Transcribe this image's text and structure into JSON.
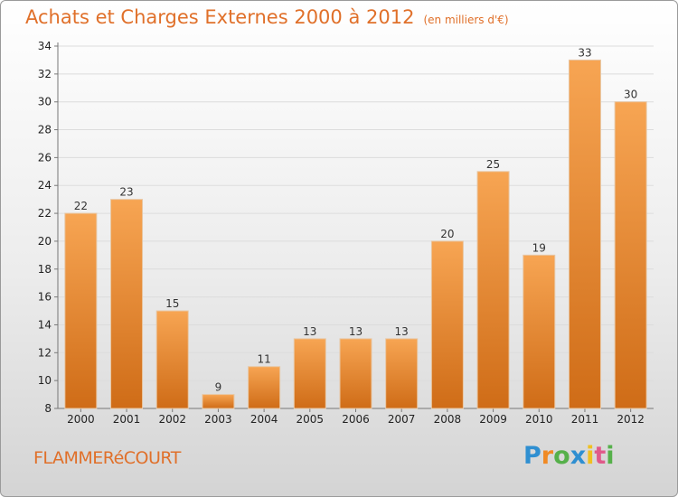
{
  "chart_data": {
    "type": "bar",
    "title": "Achats et Charges Externes 2000 à 2012",
    "subtitle": "(en milliers d'€)",
    "categories": [
      "2000",
      "2001",
      "2002",
      "2003",
      "2004",
      "2005",
      "2006",
      "2007",
      "2008",
      "2009",
      "2010",
      "2011",
      "2012"
    ],
    "values": [
      22,
      23,
      15,
      9,
      11,
      13,
      13,
      13,
      20,
      25,
      19,
      33,
      30
    ],
    "ylim": [
      8,
      34
    ],
    "yticks": [
      8,
      10,
      12,
      14,
      16,
      18,
      20,
      22,
      24,
      26,
      28,
      30,
      32,
      34
    ],
    "grid": true,
    "xlabel": "",
    "ylabel": "",
    "bar_color_top": "#f7a553",
    "bar_color_bottom": "#cf6c17",
    "title_color": "#e0702a"
  },
  "footer": {
    "commune": "FLAMMERéCOURT"
  },
  "logo": {
    "letters": [
      "P",
      "r",
      "o",
      "x",
      "i",
      "t",
      "i"
    ],
    "colors": [
      "#2f8fd1",
      "#f08a24",
      "#56b04a",
      "#2f8fd1",
      "#f0c020",
      "#e05a8a",
      "#56b04a"
    ]
  }
}
